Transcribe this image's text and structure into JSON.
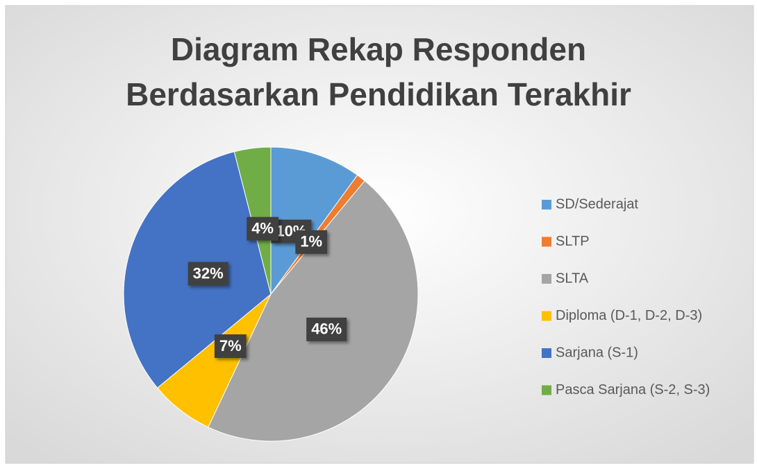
{
  "chart_data": {
    "type": "pie",
    "title": [
      "Diagram Rekap Responden",
      "Berdasarkan Pendidikan Terakhir"
    ],
    "categories": [
      "SD/Sederajat",
      "SLTP",
      "SLTA",
      "Diploma (D-1, D-2, D-3)",
      "Sarjana (S-1)",
      "Pasca Sarjana (S-2, S-3)"
    ],
    "values": [
      10,
      1,
      46,
      7,
      32,
      4
    ],
    "value_labels": [
      "10%",
      "1%",
      "46%",
      "7%",
      "32%",
      "4%"
    ],
    "colors": [
      "#5b9bd5",
      "#ed7d31",
      "#a5a5a5",
      "#ffc000",
      "#4472c4",
      "#70ad47"
    ],
    "legend": "right"
  }
}
